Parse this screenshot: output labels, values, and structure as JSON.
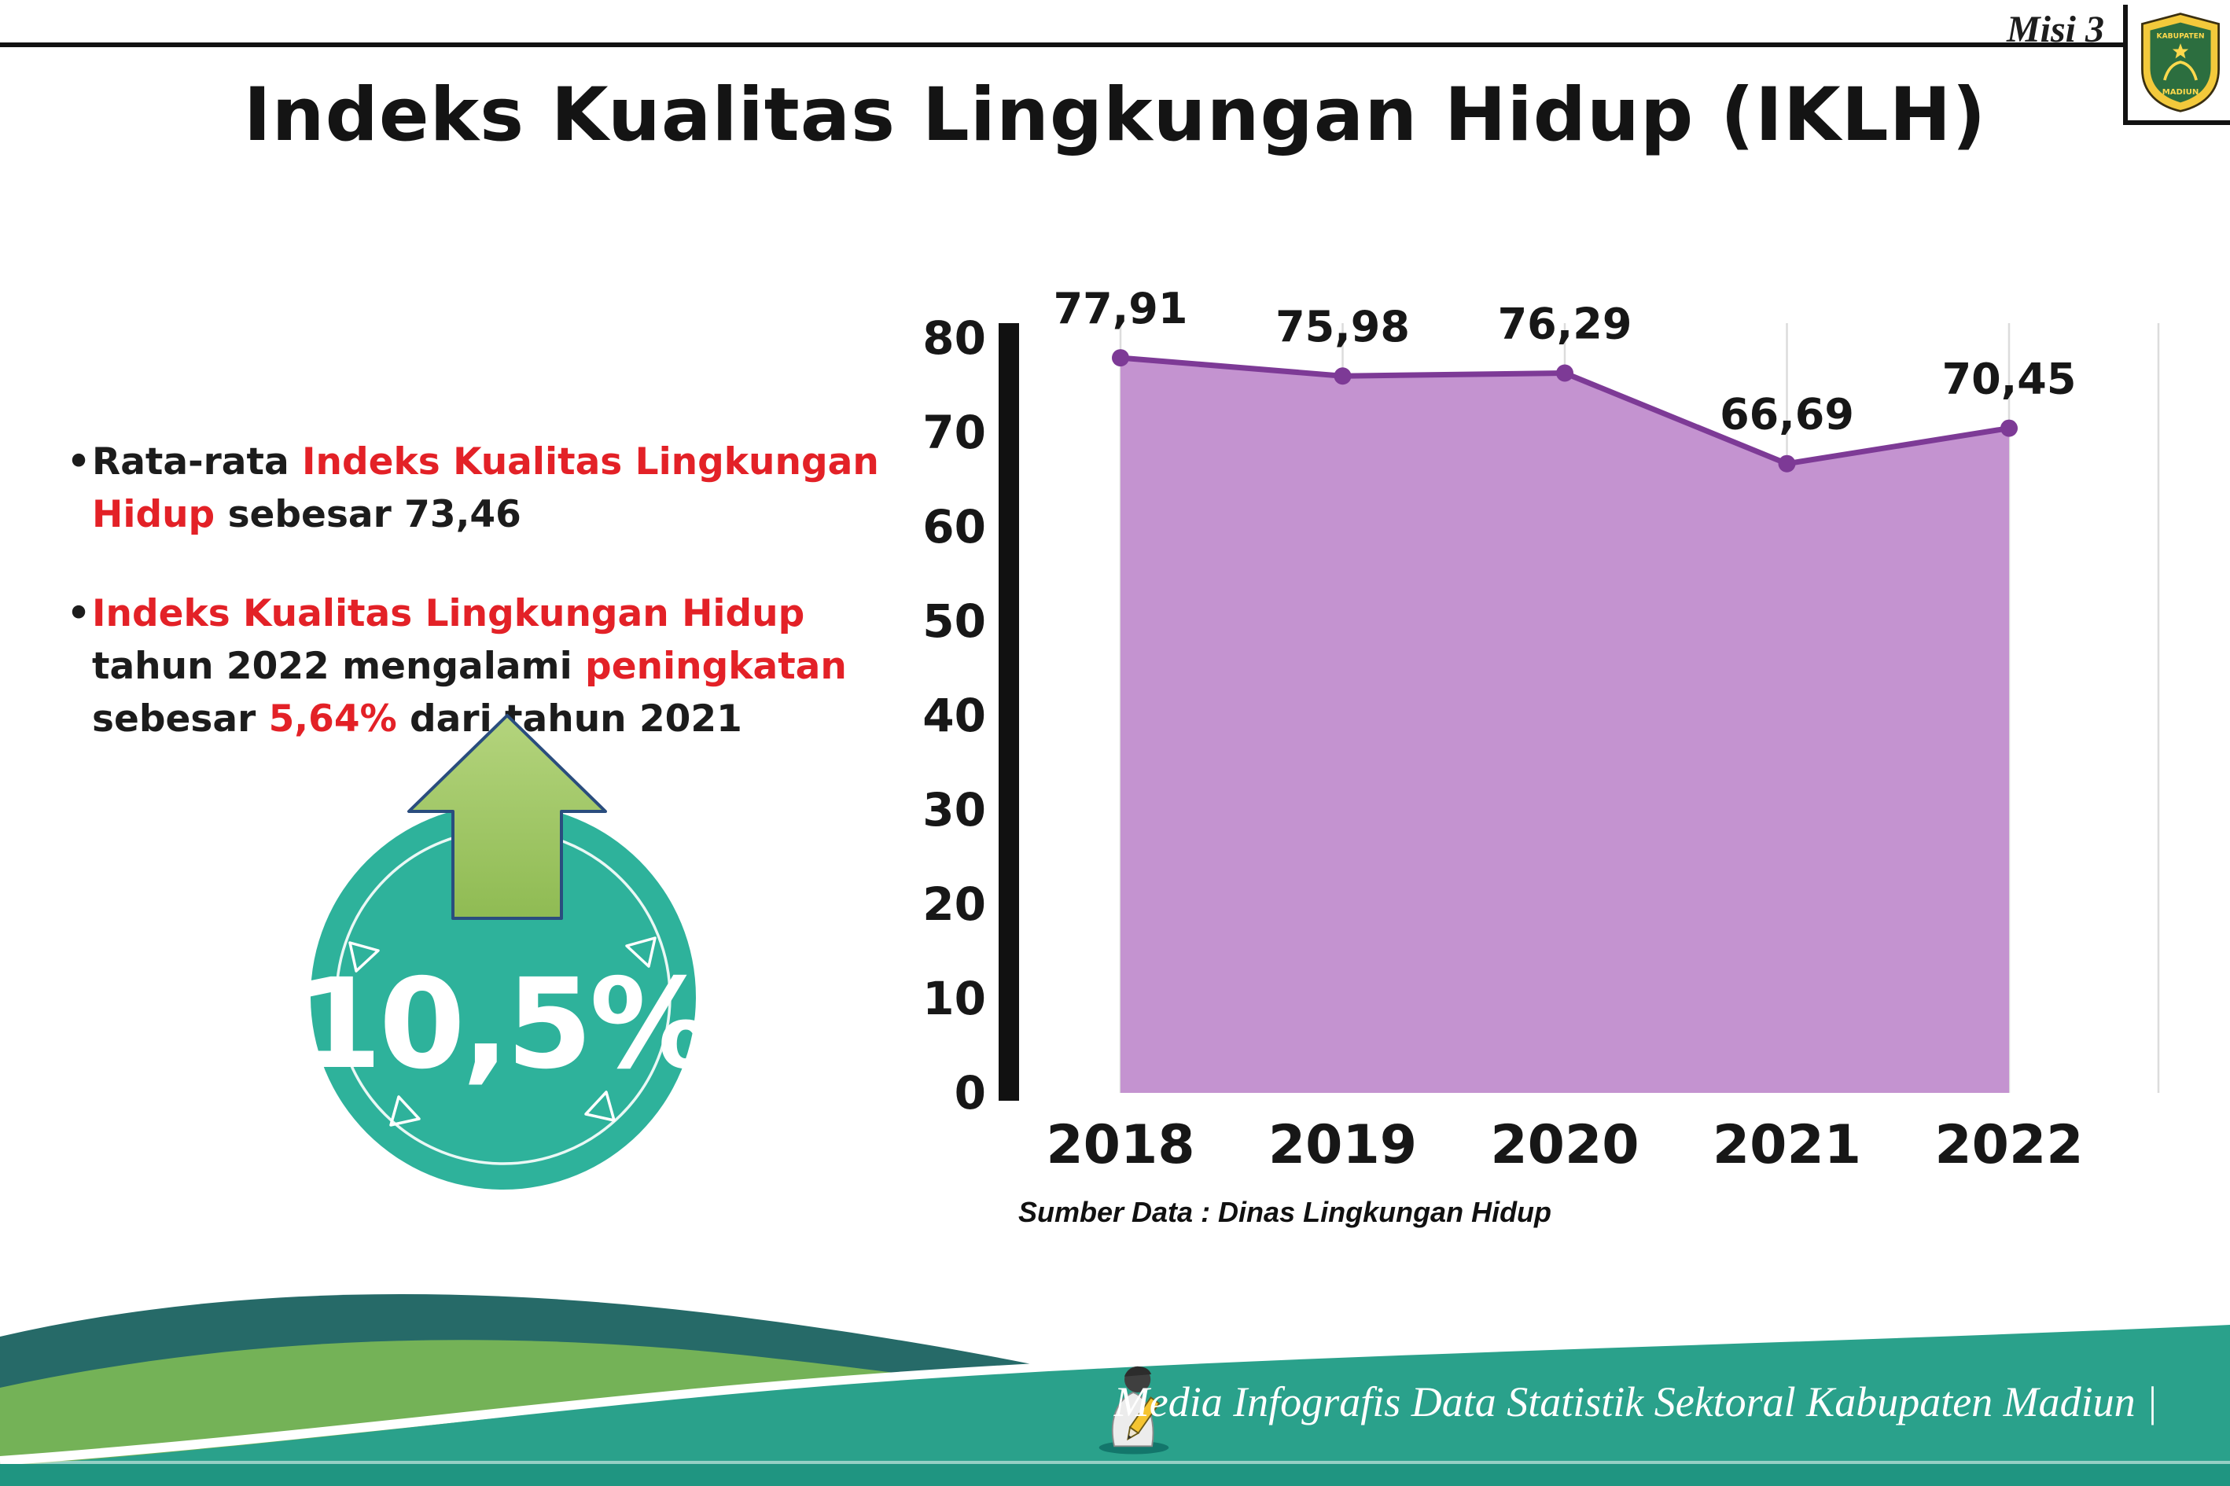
{
  "header": {
    "misi_label": "Misi 3",
    "title": "Indeks Kualitas Lingkungan Hidup (IKLH)"
  },
  "logo": {
    "text_top": "KABUPATEN",
    "text_bottom": "MADIUN"
  },
  "bullets": {
    "b1": {
      "seg1": "Rata-rata ",
      "seg2": "Indeks Kualitas Lingkungan Hidup",
      "seg3": " sebesar 73,46"
    },
    "b2": {
      "seg1": "Indeks Kualitas Lingkungan Hidup",
      "seg2": " tahun 2022 mengalami ",
      "seg3": "peningkatan",
      "seg4": " sebesar ",
      "seg5": "5,64%",
      "seg6": " dari tahun 2021"
    }
  },
  "badge": {
    "value": "10,5%"
  },
  "chart_data": {
    "type": "area",
    "categories": [
      "2018",
      "2019",
      "2020",
      "2021",
      "2022"
    ],
    "series": [
      {
        "name": "IKLH",
        "values": [
          77.91,
          75.98,
          76.29,
          66.69,
          70.45
        ]
      }
    ],
    "value_labels": [
      "77,91",
      "75,98",
      "76,29",
      "66,69",
      "70,45"
    ],
    "ylim": [
      0,
      80
    ],
    "yticks": [
      0,
      10,
      20,
      30,
      40,
      50,
      60,
      70,
      80
    ],
    "grid": true,
    "legend": "none",
    "line_color": "#7d3a96",
    "fill_color": "#c493d0",
    "title": "",
    "xlabel": "",
    "ylabel": ""
  },
  "chart_source": "Sumber Data : Dinas Lingkungan Hidup",
  "footer": {
    "credit": "Media Infografis Data Statistik Sektoral Kabupaten Madiun |"
  },
  "colors": {
    "accent_red": "#e32127",
    "badge_teal": "#2eb29b",
    "arrow_green": "#9fc763",
    "line_purple": "#7d3a96",
    "fill_purple": "#c493d0",
    "footer_teal": "#2aa18b",
    "footer_green": "#74b257",
    "footer_dark": "#266a68"
  }
}
